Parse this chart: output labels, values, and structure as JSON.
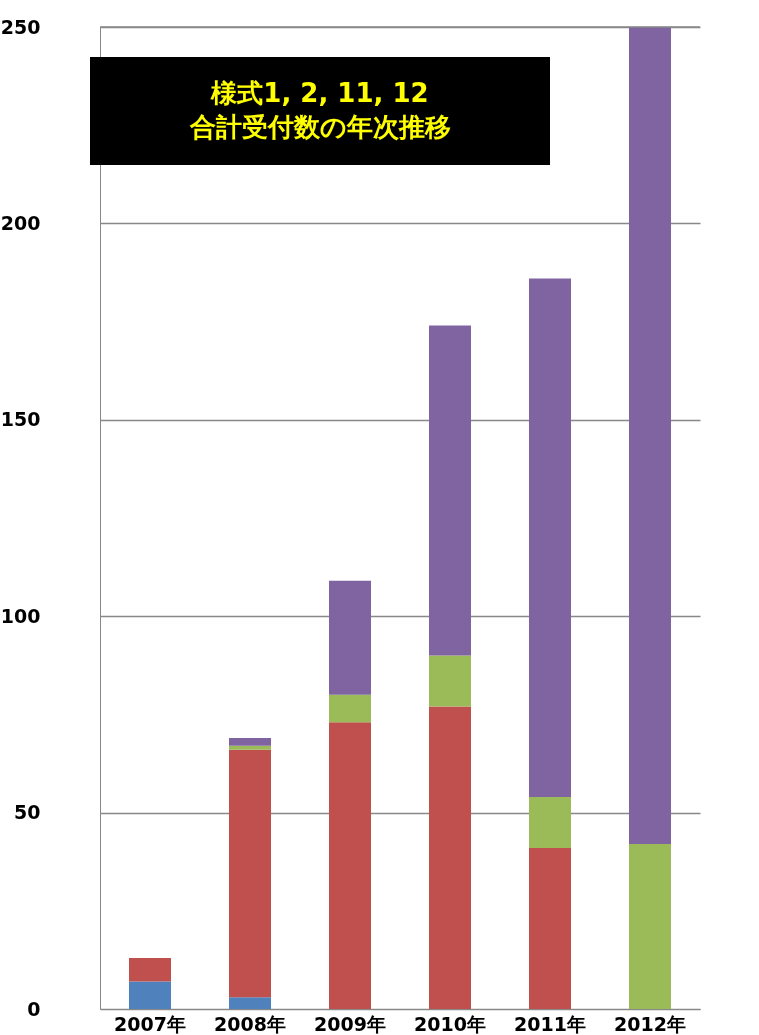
{
  "chart_data": {
    "type": "bar",
    "stacked": true,
    "title": "様式1, 2, 11, 12\n合計受付数の年次推移",
    "categories": [
      "2007年",
      "2008年",
      "2009年",
      "2010年",
      "2011年",
      "2012年"
    ],
    "series": [
      {
        "color": "#4f81bd",
        "values": [
          7,
          3,
          0,
          0,
          0,
          0
        ]
      },
      {
        "color": "#c0504d",
        "values": [
          6,
          63,
          73,
          77,
          41,
          0
        ]
      },
      {
        "color": "#9bbb59",
        "values": [
          0,
          1,
          7,
          13,
          13,
          42
        ]
      },
      {
        "color": "#8064a2",
        "values": [
          0,
          2,
          29,
          84,
          132,
          208
        ]
      }
    ],
    "ylim": [
      0,
      250
    ],
    "yticks": [
      0,
      50,
      100,
      150,
      200,
      250
    ],
    "grid": "y",
    "legend": false
  }
}
